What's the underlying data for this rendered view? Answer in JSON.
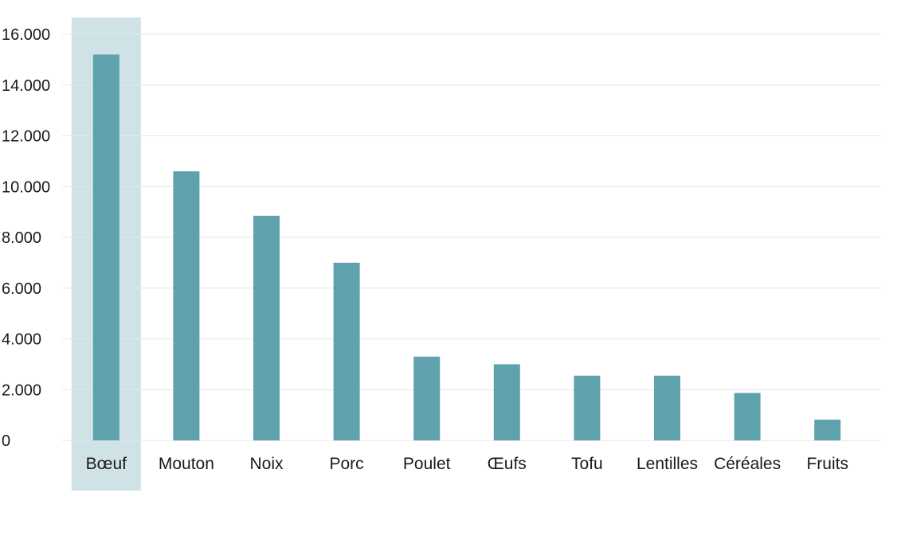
{
  "chart_data": {
    "type": "bar",
    "title": "",
    "xlabel": "",
    "ylabel": "",
    "categories": [
      "Bœuf",
      "Mouton",
      "Noix",
      "Porc",
      "Poulet",
      "Œufs",
      "Tofu",
      "Lentilles",
      "Céréales",
      "Fruits"
    ],
    "values": [
      15200,
      10600,
      8850,
      7000,
      3300,
      3000,
      2550,
      2550,
      1870,
      820
    ],
    "ylim": [
      0,
      16000
    ],
    "yticks": [
      0,
      2000,
      4000,
      6000,
      8000,
      10000,
      12000,
      14000,
      16000
    ],
    "ytick_labels": [
      "0",
      "2.000",
      "4.000",
      "6.000",
      "8.000",
      "10.000",
      "12.000",
      "14.000",
      "16.000"
    ],
    "grid": true,
    "highlight_category": "Bœuf",
    "colors": {
      "bar": "#5fa2ae",
      "highlight": "#cfe3e7",
      "grid": "#e3e6e8",
      "text": "#1a1a1a"
    }
  }
}
